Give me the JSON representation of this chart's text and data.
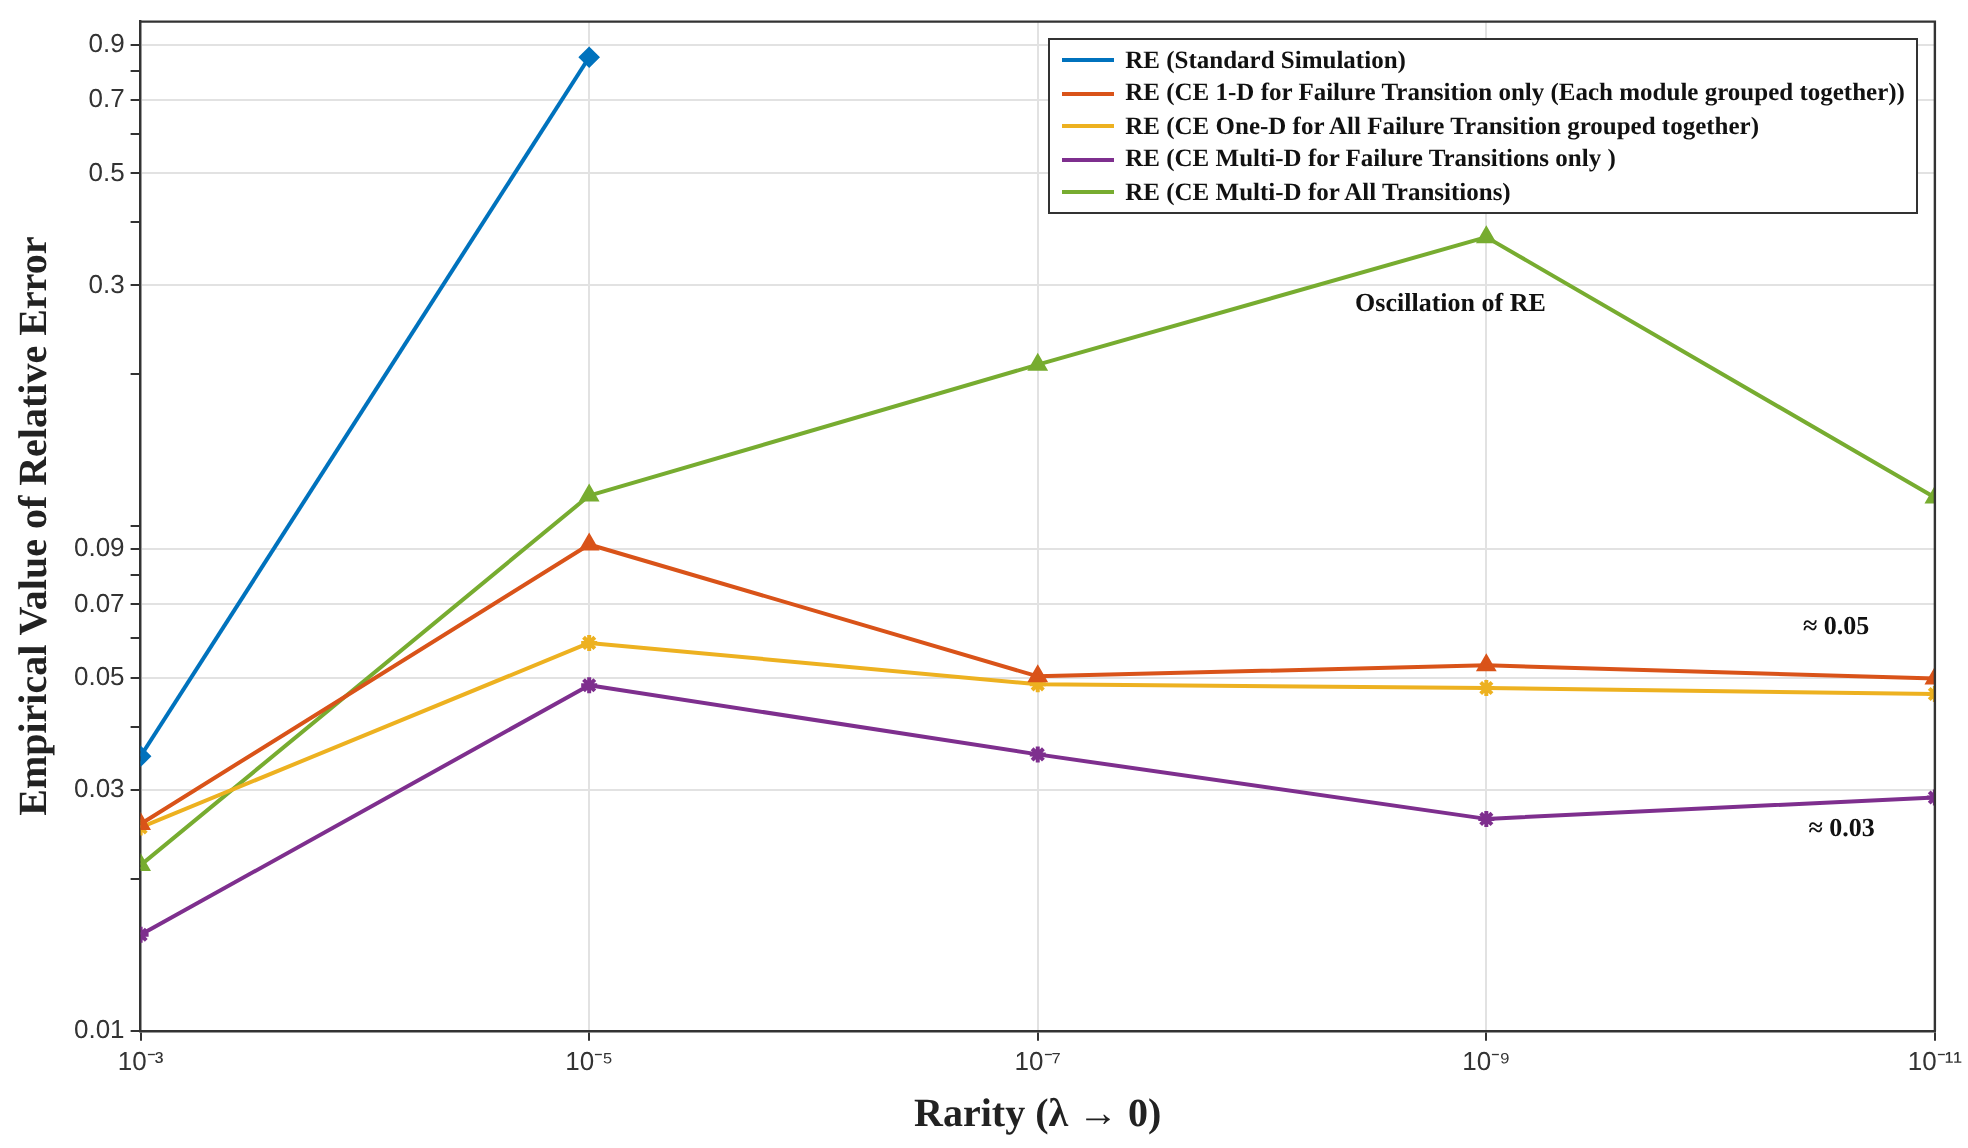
{
  "chart_data": {
    "type": "line",
    "xlabel": "Rarity (λ → 0)",
    "ylabel": "Empirical Value of Relative Error",
    "x": [
      0.001,
      1e-05,
      1e-07,
      1e-09,
      1e-11
    ],
    "log": "xy",
    "grid": true,
    "legend": "top right",
    "line_style": "solid",
    "xlim": [
      0.001,
      1e-11
    ],
    "xticks": [
      {
        "value": 0.001,
        "label": "10⁻³"
      },
      {
        "value": 1e-05,
        "label": "10⁻⁵"
      },
      {
        "value": 1e-07,
        "label": "10⁻⁷"
      },
      {
        "value": 1e-09,
        "label": "10⁻⁹"
      },
      {
        "value": 1e-11,
        "label": "10⁻¹¹"
      }
    ],
    "ylim": [
      0.01,
      1
    ],
    "yticks": [
      0.01,
      {
        "value": 0.02,
        "label": null
      },
      0.03,
      {
        "value": 0.04,
        "label": null
      },
      0.05,
      {
        "value": 0.06,
        "label": null
      },
      0.07,
      {
        "value": 0.08,
        "label": null
      },
      0.09,
      {
        "value": 0.1,
        "label": null
      },
      {
        "value": 0.2,
        "label": null
      },
      0.3,
      {
        "value": 0.4,
        "label": null
      },
      0.5,
      {
        "value": 0.6,
        "label": null
      },
      0.7,
      {
        "value": 0.8,
        "label": null
      },
      0.9
    ],
    "series": [
      {
        "name": "RE (Standard Simulation)",
        "color": "#0072bd",
        "marker": "diamond",
        "values": [
          0.035,
          0.85,
          null,
          null,
          null
        ]
      },
      {
        "name": "RE (CE 1-D for Failure Transition only (Each module grouped together))",
        "color": "#d95319",
        "marker": "triangle",
        "values": [
          0.0257,
          0.092,
          0.0504,
          0.053,
          0.0499
        ]
      },
      {
        "name": "RE (CE One-D for All Failure Transition grouped together)",
        "color": "#edb120",
        "marker": "cross",
        "values": [
          0.0253,
          0.0587,
          0.0486,
          0.0478,
          0.0465
        ]
      },
      {
        "name": "RE (CE Multi-D for Failure Transitions only )",
        "color": "#7e2f8e",
        "marker": "cross",
        "values": [
          0.0155,
          0.0484,
          0.0353,
          0.0263,
          0.029
        ]
      },
      {
        "name": "RE (CE Multi-D for All Transitions)",
        "color": "#77ac30",
        "marker": "triangle",
        "values": [
          0.0213,
          0.115,
          0.209,
          0.374,
          0.114
        ]
      }
    ],
    "annotations": [
      "Oscillation of RE",
      "≈ 0.05",
      "≈ 0.03"
    ]
  }
}
